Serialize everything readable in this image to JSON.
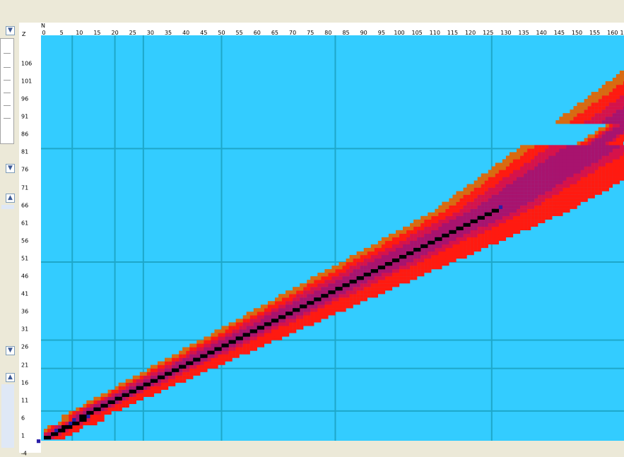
{
  "axes": {
    "z_title": "Z",
    "n_title": "N",
    "n_ticks": [
      "0",
      "5",
      "10",
      "15",
      "20",
      "25",
      "30",
      "35",
      "40",
      "45",
      "50",
      "55",
      "60",
      "65",
      "70",
      "75",
      "80",
      "85",
      "90",
      "95",
      "100",
      "105",
      "110",
      "115",
      "120",
      "125",
      "130",
      "135",
      "140",
      "145",
      "150",
      "155",
      "160",
      "1"
    ],
    "z_ticks": [
      "106",
      "101",
      "96",
      "91",
      "86",
      "81",
      "76",
      "71",
      "66",
      "61",
      "56",
      "51",
      "46",
      "41",
      "36",
      "31",
      "26",
      "21",
      "16",
      "11",
      "6",
      "1",
      "-4"
    ]
  },
  "icons": {
    "dropdown": "chevron-down-icon",
    "scroll_up": "chevron-up-icon"
  },
  "colors": {
    "background": "#33CCFF",
    "gridline": "#1ea7c9",
    "neutron_rich": "#FF1A10",
    "proton_rich": "#D96A10",
    "stable": "#000000",
    "long_lived": "#2A1FA8"
  },
  "chart_data": {
    "type": "heatmap",
    "title": "",
    "xlabel": "N",
    "ylabel": "Z",
    "xlim": [
      0,
      163
    ],
    "ylim": [
      -4,
      110
    ],
    "grid": true,
    "series": [
      {
        "name": "",
        "values": [
          [
            0,
            0
          ],
          [
            2,
            1
          ],
          [
            4,
            2
          ],
          [
            5,
            3
          ],
          [
            6,
            3
          ],
          [
            8,
            4
          ],
          [
            10,
            5
          ],
          [
            10,
            6
          ],
          [
            12,
            7
          ],
          [
            14,
            8
          ],
          [
            16,
            9
          ],
          [
            18,
            10
          ],
          [
            20,
            11
          ],
          [
            22,
            12
          ],
          [
            24,
            13
          ],
          [
            26,
            14
          ],
          [
            28,
            15
          ],
          [
            30,
            16
          ],
          [
            32,
            17
          ],
          [
            34,
            18
          ],
          [
            36,
            19
          ],
          [
            38,
            20
          ],
          [
            40,
            21
          ],
          [
            42,
            22
          ],
          [
            44,
            23
          ],
          [
            46,
            24
          ],
          [
            48,
            25
          ],
          [
            50,
            26
          ],
          [
            52,
            27
          ],
          [
            54,
            28
          ],
          [
            56,
            29
          ],
          [
            58,
            30
          ],
          [
            60,
            31
          ],
          [
            62,
            32
          ],
          [
            64,
            33
          ],
          [
            66,
            34
          ],
          [
            68,
            35
          ],
          [
            70,
            36
          ],
          [
            72,
            37
          ],
          [
            74,
            38
          ],
          [
            76,
            39
          ],
          [
            78,
            40
          ],
          [
            80,
            41
          ],
          [
            82,
            42
          ],
          [
            84,
            43
          ],
          [
            86,
            44
          ],
          [
            88,
            45
          ],
          [
            90,
            46
          ],
          [
            92,
            47
          ],
          [
            94,
            48
          ],
          [
            96,
            49
          ],
          [
            98,
            50
          ],
          [
            100,
            51
          ],
          [
            102,
            52
          ],
          [
            104,
            53
          ],
          [
            106,
            54
          ],
          [
            108,
            55
          ],
          [
            110,
            56
          ],
          [
            112,
            57
          ],
          [
            114,
            58
          ],
          [
            116,
            59
          ],
          [
            118,
            60
          ],
          [
            120,
            61
          ],
          [
            122,
            62
          ],
          [
            124,
            63
          ],
          [
            126,
            64
          ]
        ]
      }
    ]
  }
}
